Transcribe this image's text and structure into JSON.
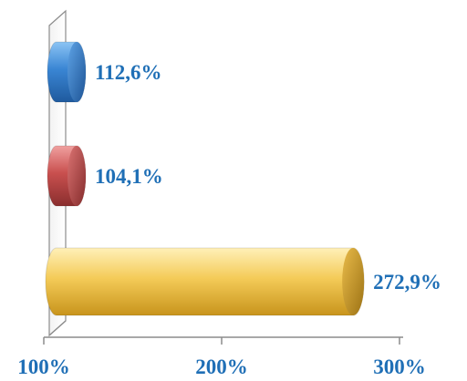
{
  "chart_data": {
    "type": "bar",
    "orientation": "horizontal",
    "categories": [
      "",
      "",
      ""
    ],
    "values": [
      112.6,
      104.1,
      272.9
    ],
    "value_labels": [
      "112,6%",
      "104,1%",
      "272,9%"
    ],
    "bar_colors": [
      "#3a86d4",
      "#c9504f",
      "#f1c34c"
    ],
    "label_color": "#1f6fb6",
    "xlim": [
      100,
      300
    ],
    "x_ticks": [
      100,
      200,
      300
    ],
    "x_tick_labels": [
      "100%",
      "200%",
      "300%"
    ],
    "grid": false,
    "legend": "none",
    "title": "",
    "xlabel": "",
    "ylabel": ""
  }
}
